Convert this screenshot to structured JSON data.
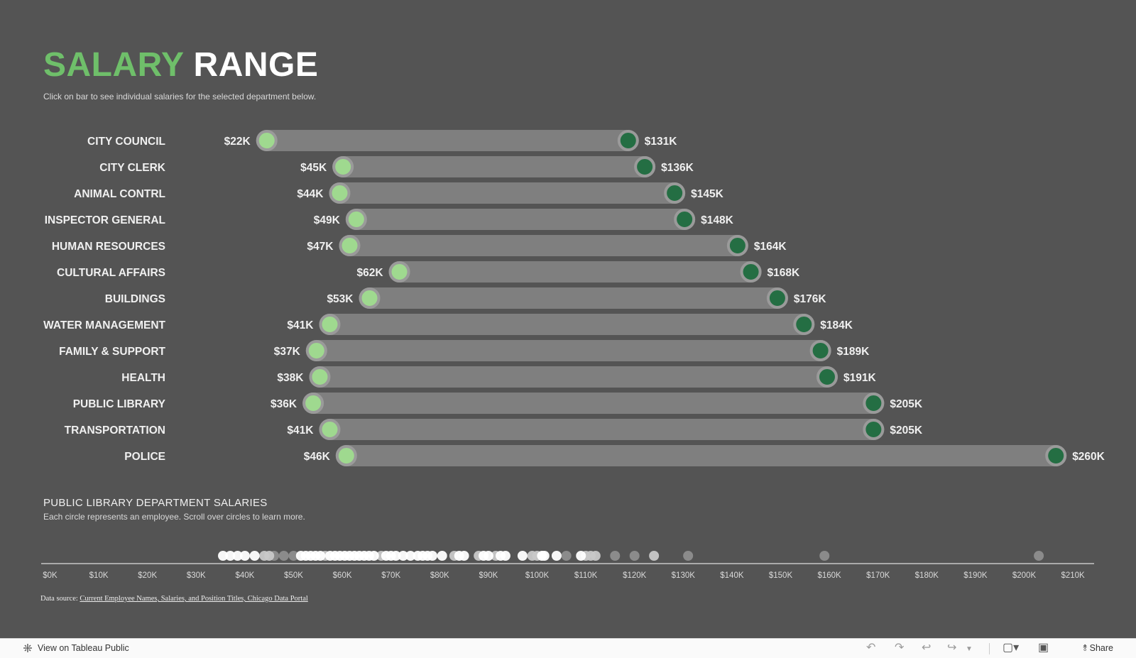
{
  "header": {
    "title_part1": "SALARY",
    "title_part2": "RANGE",
    "subtitle": "Click on bar to see individual salaries for the selected department below."
  },
  "colors": {
    "background": "#545454",
    "bar": "#7f7f7f",
    "min_dot": "#9fd98f",
    "max_dot": "#246e43",
    "dot_ring": "#9a9a9a",
    "title_green": "#6fbf6a"
  },
  "chart_data": [
    {
      "type": "dumbbell",
      "title": "SALARY RANGE",
      "categories": [
        "CITY COUNCIL",
        "CITY CLERK",
        "ANIMAL CONTRL",
        "INSPECTOR GENERAL",
        "HUMAN RESOURCES",
        "CULTURAL AFFAIRS",
        "BUILDINGS",
        "WATER MANAGEMENT",
        "FAMILY & SUPPORT",
        "HEALTH",
        "PUBLIC LIBRARY",
        "TRANSPORTATION",
        "POLICE"
      ],
      "series": [
        {
          "name": "min",
          "values": [
            22,
            45,
            44,
            49,
            47,
            62,
            53,
            41,
            37,
            38,
            36,
            41,
            46
          ]
        },
        {
          "name": "max",
          "values": [
            131,
            136,
            145,
            148,
            164,
            168,
            176,
            184,
            189,
            191,
            205,
            205,
            260
          ]
        }
      ],
      "min_labels": [
        "$22K",
        "$45K",
        "$44K",
        "$49K",
        "$47K",
        "$62K",
        "$53K",
        "$41K",
        "$37K",
        "$38K",
        "$36K",
        "$41K",
        "$46K"
      ],
      "max_labels": [
        "$131K",
        "$136K",
        "$145K",
        "$148K",
        "$164K",
        "$168K",
        "$176K",
        "$184K",
        "$189K",
        "$191K",
        "$205K",
        "$205K",
        "$260K"
      ],
      "units": "thousands of dollars",
      "selected": "PUBLIC LIBRARY"
    },
    {
      "type": "scatter",
      "title": "PUBLIC LIBRARY DEPARTMENT SALARIES",
      "subtitle": "Each circle represents an employee. Scroll over circles to learn more.",
      "xlim": [
        0,
        215
      ],
      "xticks": [
        0,
        10,
        20,
        30,
        40,
        50,
        60,
        70,
        80,
        90,
        100,
        110,
        120,
        130,
        140,
        150,
        160,
        170,
        180,
        190,
        200,
        210
      ],
      "xtick_labels": [
        "$0K",
        "$10K",
        "$20K",
        "$30K",
        "$40K",
        "$50K",
        "$60K",
        "$70K",
        "$80K",
        "$90K",
        "$100K",
        "$110K",
        "$120K",
        "$130K",
        "$140K",
        "$150K",
        "$160K",
        "$170K",
        "$180K",
        "$190K",
        "$200K",
        "$210K"
      ],
      "points": [
        {
          "x": 35.5,
          "shade": "white"
        },
        {
          "x": 37,
          "shade": "white"
        },
        {
          "x": 38.5,
          "shade": "white"
        },
        {
          "x": 40,
          "shade": "white"
        },
        {
          "x": 42,
          "shade": "white"
        },
        {
          "x": 44,
          "shade": "light"
        },
        {
          "x": 45,
          "shade": "light"
        },
        {
          "x": 46,
          "shade": "mid"
        },
        {
          "x": 48,
          "shade": "mid"
        },
        {
          "x": 50,
          "shade": "mid"
        },
        {
          "x": 51.5,
          "shade": "white"
        },
        {
          "x": 52.5,
          "shade": "white"
        },
        {
          "x": 53.5,
          "shade": "white"
        },
        {
          "x": 54.5,
          "shade": "white"
        },
        {
          "x": 55.5,
          "shade": "white"
        },
        {
          "x": 56.5,
          "shade": "light"
        },
        {
          "x": 57.5,
          "shade": "white"
        },
        {
          "x": 58.5,
          "shade": "white"
        },
        {
          "x": 59.5,
          "shade": "white"
        },
        {
          "x": 60.5,
          "shade": "white"
        },
        {
          "x": 61.5,
          "shade": "white"
        },
        {
          "x": 62.5,
          "shade": "white"
        },
        {
          "x": 63.5,
          "shade": "white"
        },
        {
          "x": 64.5,
          "shade": "white"
        },
        {
          "x": 65.5,
          "shade": "white"
        },
        {
          "x": 66.5,
          "shade": "white"
        },
        {
          "x": 68,
          "shade": "light"
        },
        {
          "x": 69,
          "shade": "white"
        },
        {
          "x": 70,
          "shade": "white"
        },
        {
          "x": 71,
          "shade": "white"
        },
        {
          "x": 72.5,
          "shade": "white"
        },
        {
          "x": 74,
          "shade": "white"
        },
        {
          "x": 75.5,
          "shade": "white"
        },
        {
          "x": 76.5,
          "shade": "white"
        },
        {
          "x": 77.5,
          "shade": "white"
        },
        {
          "x": 78.5,
          "shade": "white"
        },
        {
          "x": 80.5,
          "shade": "white"
        },
        {
          "x": 83,
          "shade": "light"
        },
        {
          "x": 84,
          "shade": "white"
        },
        {
          "x": 85,
          "shade": "white"
        },
        {
          "x": 88,
          "shade": "light"
        },
        {
          "x": 89,
          "shade": "white"
        },
        {
          "x": 90,
          "shade": "white"
        },
        {
          "x": 91.5,
          "shade": "light"
        },
        {
          "x": 92.5,
          "shade": "white"
        },
        {
          "x": 93.5,
          "shade": "white"
        },
        {
          "x": 97,
          "shade": "white"
        },
        {
          "x": 99,
          "shade": "light"
        },
        {
          "x": 100,
          "shade": "light"
        },
        {
          "x": 101,
          "shade": "white"
        },
        {
          "x": 101.5,
          "shade": "white"
        },
        {
          "x": 104,
          "shade": "white"
        },
        {
          "x": 106,
          "shade": "mid"
        },
        {
          "x": 109,
          "shade": "white"
        },
        {
          "x": 110,
          "shade": "light"
        },
        {
          "x": 111,
          "shade": "light"
        },
        {
          "x": 112,
          "shade": "light"
        },
        {
          "x": 116,
          "shade": "mid"
        },
        {
          "x": 120,
          "shade": "mid"
        },
        {
          "x": 124,
          "shade": "light"
        },
        {
          "x": 131,
          "shade": "mid"
        },
        {
          "x": 159,
          "shade": "mid"
        },
        {
          "x": 203,
          "shade": "mid"
        }
      ]
    }
  ],
  "section2": {
    "title": "PUBLIC LIBRARY DEPARTMENT SALARIES",
    "subtitle": "Each circle represents an employee. Scroll over circles to learn more."
  },
  "source": {
    "prefix": "Data source:",
    "link_text": "Current Employee Names, Salaries, and Position Titles, Chicago Data Portal"
  },
  "footer": {
    "view_label": "View on Tableau Public",
    "share_label": "Share",
    "icons": [
      "tableau-logo-icon",
      "undo-icon",
      "redo-icon",
      "revert-icon",
      "refresh-icon",
      "dropdown-icon",
      "present-icon",
      "fullscreen-icon",
      "share-icon"
    ]
  }
}
